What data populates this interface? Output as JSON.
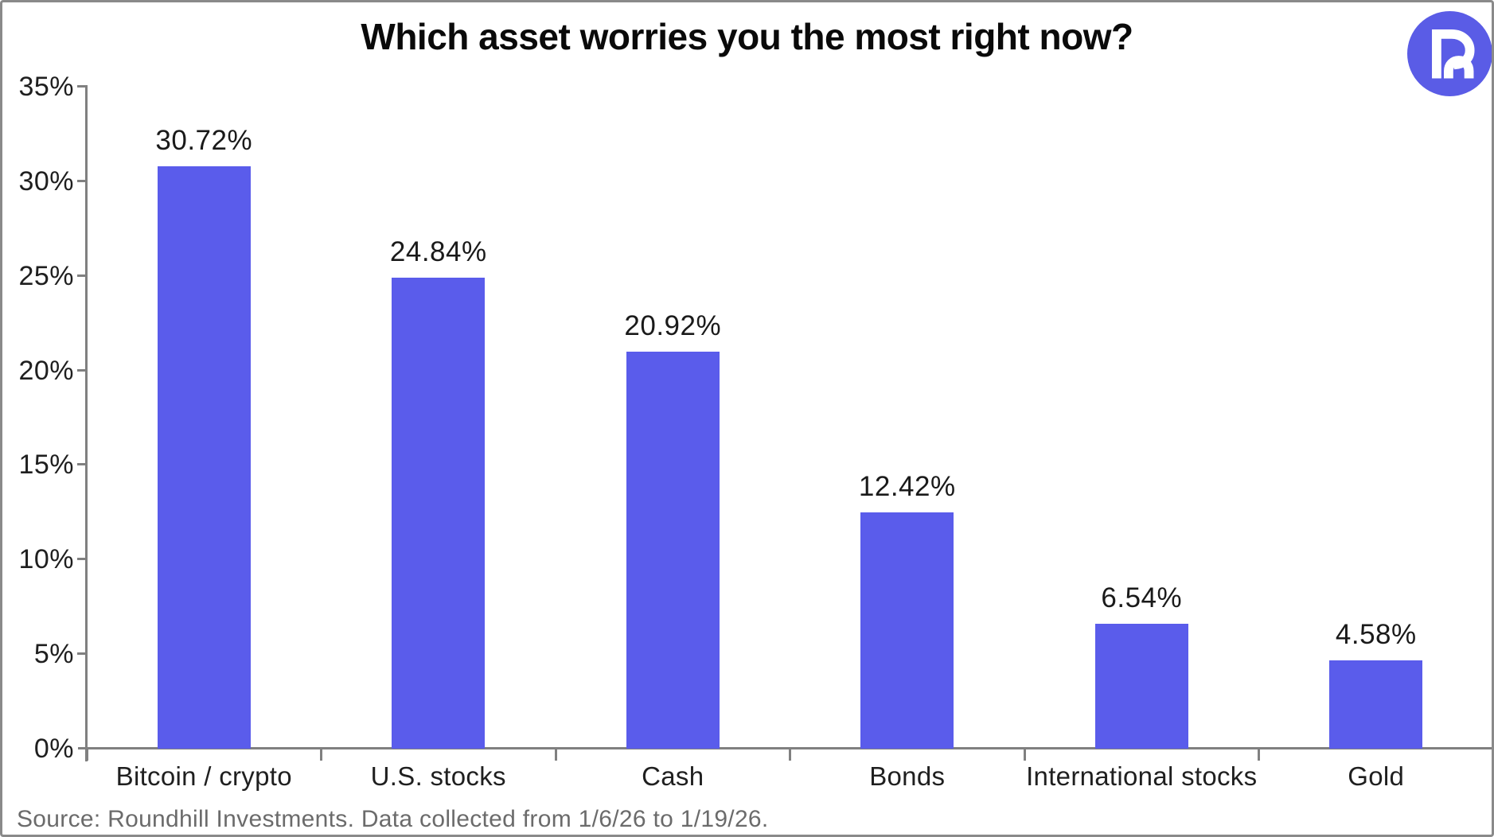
{
  "title": "Which asset worries you the most right now?",
  "source_note": "Source: Roundhill Investments. Data collected from 1/6/26 to 1/19/26.",
  "logo": {
    "name": "roundhill-logo"
  },
  "colors": {
    "background": "#ffffff",
    "border": "#8a8a8a",
    "title": "#0a0a0a",
    "axis": "#808080",
    "bar": "#5a5ceb",
    "logo_circle": "#5a5ce6",
    "logo_glyph": "#ffffff",
    "source_text": "#6b6b6b"
  },
  "chart_data": {
    "type": "bar",
    "title": "Which asset worries you the most right now?",
    "categories": [
      "Bitcoin / crypto",
      "U.S. stocks",
      "Cash",
      "Bonds",
      "International stocks",
      "Gold"
    ],
    "values": [
      30.72,
      24.84,
      20.92,
      12.42,
      6.54,
      4.58
    ],
    "value_labels": [
      "30.72%",
      "24.84%",
      "20.92%",
      "12.42%",
      "6.54%",
      "4.58%"
    ],
    "xlabel": "",
    "ylabel": "",
    "ylim": [
      0,
      35
    ],
    "ytick_step": 5,
    "ytick_labels": [
      "0%",
      "5%",
      "10%",
      "15%",
      "20%",
      "25%",
      "30%",
      "35%"
    ],
    "grid": false,
    "legend": false,
    "bar_color": "#5a5ceb"
  }
}
